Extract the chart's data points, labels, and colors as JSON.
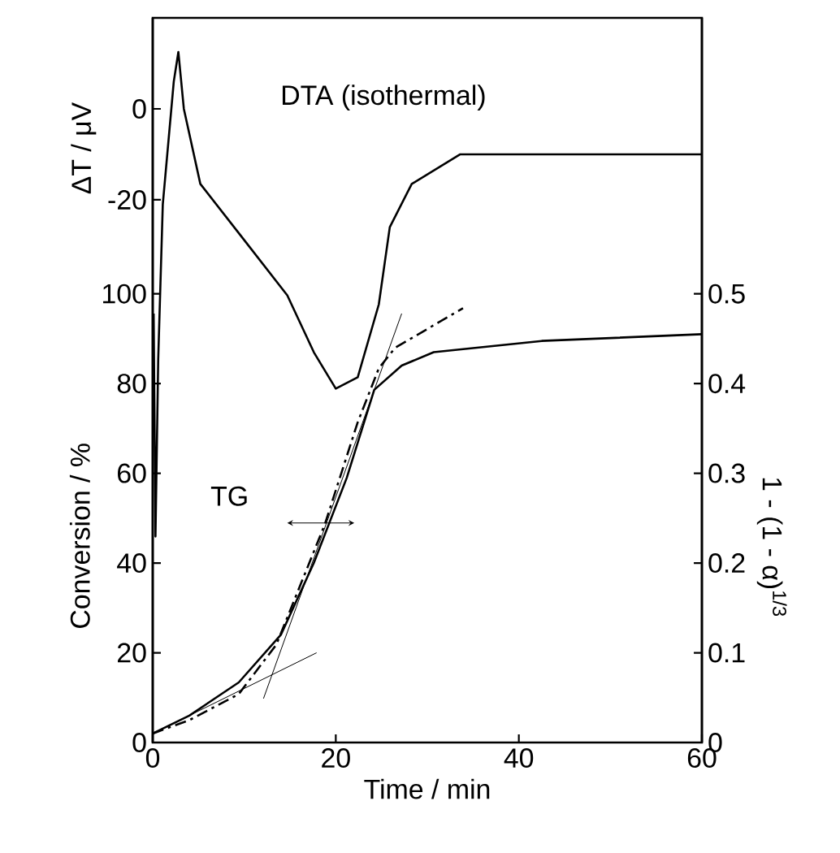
{
  "chart_data": {
    "type": "line",
    "xlabel": "Time / min",
    "ylabel": "Conversion / %",
    "y2label": "1 - (1 - α)$^{1/3}$",
    "y3label": "ΔT / μV",
    "annotations": [
      "DTA (isothermal)",
      "TG"
    ],
    "xlim": [
      0,
      60
    ],
    "xticks": [
      0,
      20,
      40,
      60
    ],
    "ylim": [
      0,
      161.5
    ],
    "yticks": [
      0,
      20,
      40,
      60,
      80,
      100
    ],
    "y2lim": [
      0,
      0.8075
    ],
    "y2ticks": [
      0,
      0.1,
      0.2,
      0.3,
      0.4,
      0.5
    ],
    "y3lim": [
      -139.3,
      20
    ],
    "y3ticks": [
      -20,
      0
    ],
    "series": [
      {
        "color": "#000000",
        "axis": "y3",
        "line_style": "solid",
        "x": [
          0.1,
          0.3,
          0.6,
          1.1,
          2.3,
          2.8,
          3.4,
          5.2,
          9.9,
          14.7,
          17.6,
          20.0,
          22.4,
          24.7,
          25.9,
          28.3,
          33.6,
          45,
          60
        ],
        "values": [
          -45,
          -94,
          -55,
          -21,
          6,
          12.5,
          0,
          -16.5,
          -28.6,
          -41,
          -53.5,
          -61.5,
          -59,
          -43,
          -26,
          -16.5,
          -10,
          -10,
          -10
        ]
      },
      {
        "color": "#000000",
        "axis": "y",
        "line_style": "solid",
        "x": [
          0,
          4,
          9.4,
          14.0,
          17.6,
          21.2,
          24.2,
          27.2,
          30.7,
          42.5,
          60
        ],
        "values": [
          2,
          6,
          13.4,
          24,
          40,
          59,
          78.6,
          84,
          87,
          89.5,
          91
        ]
      },
      {
        "color": "#000000",
        "axis": "y2",
        "line_style": "dashed",
        "x": [
          0,
          4,
          9.4,
          13.5,
          18.8,
          22.4,
          24.7,
          26.5,
          33.9
        ],
        "values": [
          0.01,
          0.025,
          0.054,
          0.109,
          0.243,
          0.357,
          0.417,
          0.44,
          0.484
        ]
      },
      {
        "color": "#000000",
        "axis": "y",
        "line_style": "solid",
        "x": [
          1,
          17.9
        ],
        "values": [
          3,
          20
        ]
      },
      {
        "color": "#000000",
        "axis": "y",
        "line_style": "solid",
        "x": [
          12.1,
          27.2
        ],
        "values": [
          9.8,
          95.6
        ]
      }
    ]
  }
}
